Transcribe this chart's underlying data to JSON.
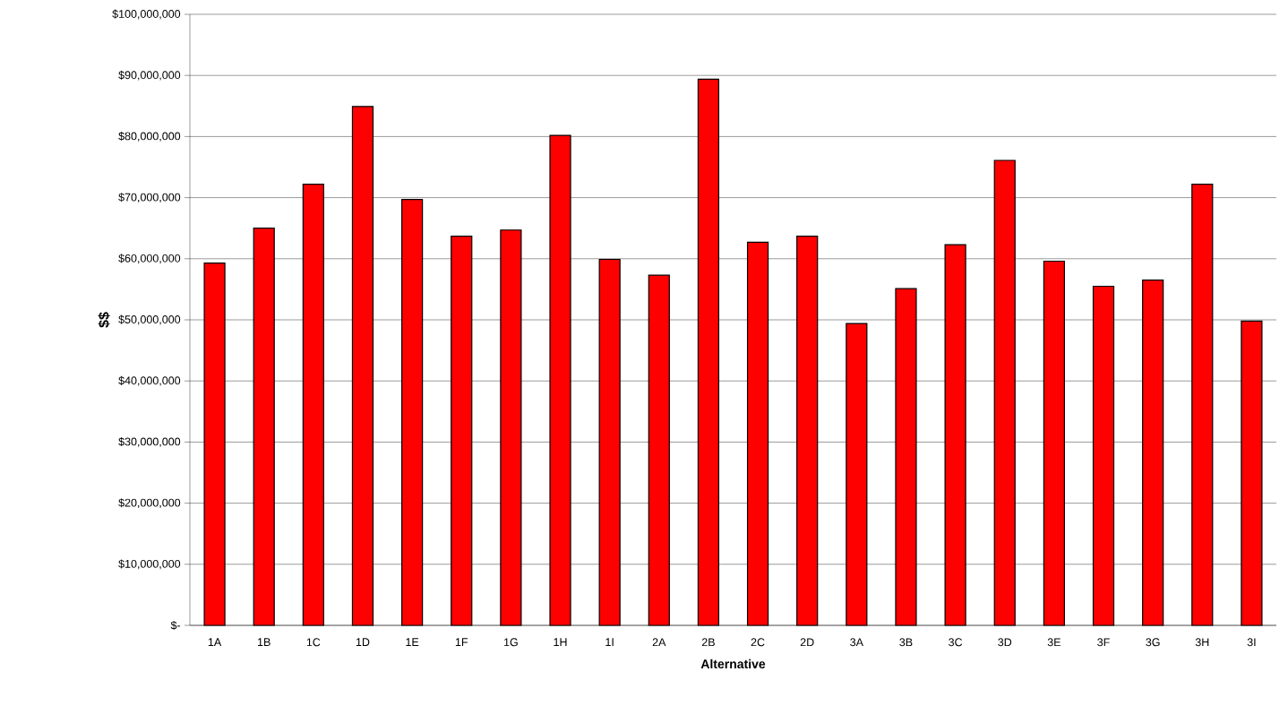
{
  "chart_data": {
    "type": "bar",
    "xlabel": "Alternative",
    "ylabel": "$$",
    "categories": [
      "1A",
      "1B",
      "1C",
      "1D",
      "1E",
      "1F",
      "1G",
      "1H",
      "1I",
      "2A",
      "2B",
      "2C",
      "2D",
      "3A",
      "3B",
      "3C",
      "3D",
      "3E",
      "3F",
      "3G",
      "3H",
      "3I"
    ],
    "values": [
      59300000,
      65000000,
      72200000,
      84900000,
      69700000,
      63700000,
      64700000,
      80200000,
      59900000,
      57300000,
      89400000,
      62700000,
      63700000,
      49400000,
      55100000,
      62300000,
      76100000,
      59600000,
      55500000,
      56500000,
      72200000,
      49800000
    ],
    "color": "#ff0000",
    "ylim": [
      0,
      100000000
    ],
    "yticks": [
      {
        "value": 0,
        "label": "$-"
      },
      {
        "value": 10000000,
        "label": "$10,000,000"
      },
      {
        "value": 20000000,
        "label": "$20,000,000"
      },
      {
        "value": 30000000,
        "label": "$30,000,000"
      },
      {
        "value": 40000000,
        "label": "$40,000,000"
      },
      {
        "value": 50000000,
        "label": "$50,000,000"
      },
      {
        "value": 60000000,
        "label": "$60,000,000"
      },
      {
        "value": 70000000,
        "label": "$70,000,000"
      },
      {
        "value": 80000000,
        "label": "$80,000,000"
      },
      {
        "value": 90000000,
        "label": "$90,000,000"
      },
      {
        "value": 100000000,
        "label": "$100,000,000"
      }
    ],
    "grid": "y"
  }
}
